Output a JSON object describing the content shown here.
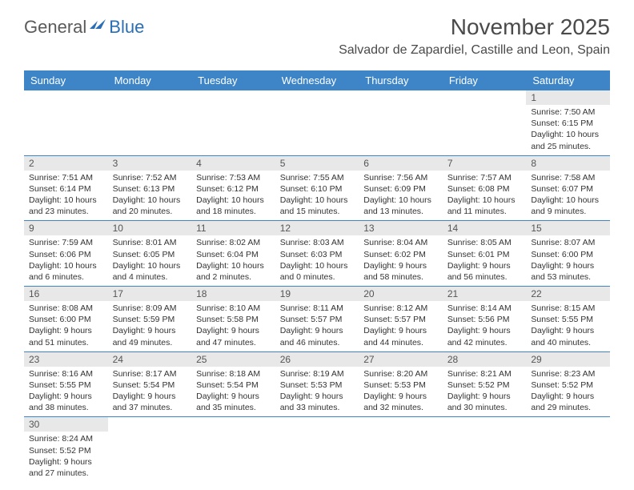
{
  "logo": {
    "part1": "General",
    "part2": "Blue"
  },
  "title": "November 2025",
  "location": "Salvador de Zapardiel, Castille and Leon, Spain",
  "colors": {
    "header_bg": "#3d85c6",
    "header_text": "#ffffff",
    "daynum_bg": "#e8e8e8",
    "border": "#3d85c6",
    "logo_gray": "#5a5a5a",
    "logo_blue": "#2a6fb5"
  },
  "dayHeaders": [
    "Sunday",
    "Monday",
    "Tuesday",
    "Wednesday",
    "Thursday",
    "Friday",
    "Saturday"
  ],
  "weeks": [
    [
      null,
      null,
      null,
      null,
      null,
      null,
      {
        "n": "1",
        "sr": "7:50 AM",
        "ss": "6:15 PM",
        "dl": "10 hours and 25 minutes."
      }
    ],
    [
      {
        "n": "2",
        "sr": "7:51 AM",
        "ss": "6:14 PM",
        "dl": "10 hours and 23 minutes."
      },
      {
        "n": "3",
        "sr": "7:52 AM",
        "ss": "6:13 PM",
        "dl": "10 hours and 20 minutes."
      },
      {
        "n": "4",
        "sr": "7:53 AM",
        "ss": "6:12 PM",
        "dl": "10 hours and 18 minutes."
      },
      {
        "n": "5",
        "sr": "7:55 AM",
        "ss": "6:10 PM",
        "dl": "10 hours and 15 minutes."
      },
      {
        "n": "6",
        "sr": "7:56 AM",
        "ss": "6:09 PM",
        "dl": "10 hours and 13 minutes."
      },
      {
        "n": "7",
        "sr": "7:57 AM",
        "ss": "6:08 PM",
        "dl": "10 hours and 11 minutes."
      },
      {
        "n": "8",
        "sr": "7:58 AM",
        "ss": "6:07 PM",
        "dl": "10 hours and 9 minutes."
      }
    ],
    [
      {
        "n": "9",
        "sr": "7:59 AM",
        "ss": "6:06 PM",
        "dl": "10 hours and 6 minutes."
      },
      {
        "n": "10",
        "sr": "8:01 AM",
        "ss": "6:05 PM",
        "dl": "10 hours and 4 minutes."
      },
      {
        "n": "11",
        "sr": "8:02 AM",
        "ss": "6:04 PM",
        "dl": "10 hours and 2 minutes."
      },
      {
        "n": "12",
        "sr": "8:03 AM",
        "ss": "6:03 PM",
        "dl": "10 hours and 0 minutes."
      },
      {
        "n": "13",
        "sr": "8:04 AM",
        "ss": "6:02 PM",
        "dl": "9 hours and 58 minutes."
      },
      {
        "n": "14",
        "sr": "8:05 AM",
        "ss": "6:01 PM",
        "dl": "9 hours and 56 minutes."
      },
      {
        "n": "15",
        "sr": "8:07 AM",
        "ss": "6:00 PM",
        "dl": "9 hours and 53 minutes."
      }
    ],
    [
      {
        "n": "16",
        "sr": "8:08 AM",
        "ss": "6:00 PM",
        "dl": "9 hours and 51 minutes."
      },
      {
        "n": "17",
        "sr": "8:09 AM",
        "ss": "5:59 PM",
        "dl": "9 hours and 49 minutes."
      },
      {
        "n": "18",
        "sr": "8:10 AM",
        "ss": "5:58 PM",
        "dl": "9 hours and 47 minutes."
      },
      {
        "n": "19",
        "sr": "8:11 AM",
        "ss": "5:57 PM",
        "dl": "9 hours and 46 minutes."
      },
      {
        "n": "20",
        "sr": "8:12 AM",
        "ss": "5:57 PM",
        "dl": "9 hours and 44 minutes."
      },
      {
        "n": "21",
        "sr": "8:14 AM",
        "ss": "5:56 PM",
        "dl": "9 hours and 42 minutes."
      },
      {
        "n": "22",
        "sr": "8:15 AM",
        "ss": "5:55 PM",
        "dl": "9 hours and 40 minutes."
      }
    ],
    [
      {
        "n": "23",
        "sr": "8:16 AM",
        "ss": "5:55 PM",
        "dl": "9 hours and 38 minutes."
      },
      {
        "n": "24",
        "sr": "8:17 AM",
        "ss": "5:54 PM",
        "dl": "9 hours and 37 minutes."
      },
      {
        "n": "25",
        "sr": "8:18 AM",
        "ss": "5:54 PM",
        "dl": "9 hours and 35 minutes."
      },
      {
        "n": "26",
        "sr": "8:19 AM",
        "ss": "5:53 PM",
        "dl": "9 hours and 33 minutes."
      },
      {
        "n": "27",
        "sr": "8:20 AM",
        "ss": "5:53 PM",
        "dl": "9 hours and 32 minutes."
      },
      {
        "n": "28",
        "sr": "8:21 AM",
        "ss": "5:52 PM",
        "dl": "9 hours and 30 minutes."
      },
      {
        "n": "29",
        "sr": "8:23 AM",
        "ss": "5:52 PM",
        "dl": "9 hours and 29 minutes."
      }
    ],
    [
      {
        "n": "30",
        "sr": "8:24 AM",
        "ss": "5:52 PM",
        "dl": "9 hours and 27 minutes."
      },
      null,
      null,
      null,
      null,
      null,
      null
    ]
  ],
  "labels": {
    "sunrise": "Sunrise:",
    "sunset": "Sunset:",
    "daylight": "Daylight:"
  }
}
